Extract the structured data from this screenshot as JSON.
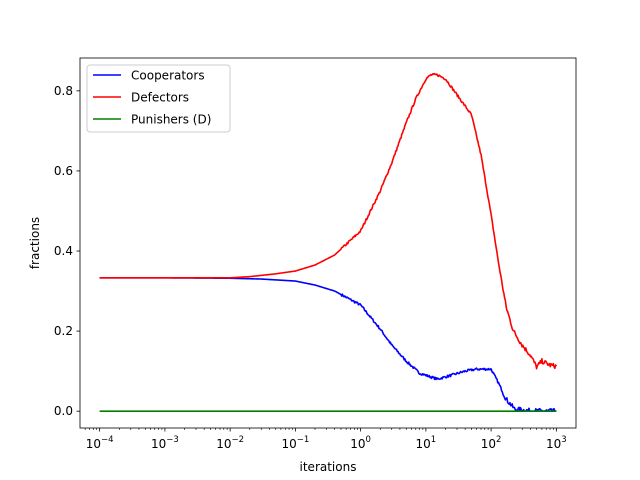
{
  "chart_data": {
    "type": "line",
    "xscale": "log",
    "xlabel": "iterations",
    "ylabel": "fractions",
    "xlim": [
      5e-05,
      2000
    ],
    "ylim": [
      -0.042,
      0.882
    ],
    "xticks": [
      0.0001,
      0.001,
      0.01,
      0.1,
      1,
      10,
      100,
      1000
    ],
    "xtick_labels": [
      {
        "base": "10",
        "exp": "−4"
      },
      {
        "base": "10",
        "exp": "−3"
      },
      {
        "base": "10",
        "exp": "−2"
      },
      {
        "base": "10",
        "exp": "−1"
      },
      {
        "base": "10",
        "exp": "0"
      },
      {
        "base": "10",
        "exp": "1"
      },
      {
        "base": "10",
        "exp": "2"
      },
      {
        "base": "10",
        "exp": "3"
      }
    ],
    "yticks": [
      0.0,
      0.2,
      0.4,
      0.6,
      0.8
    ],
    "ytick_labels": [
      "0.0",
      "0.2",
      "0.4",
      "0.6",
      "0.8"
    ],
    "grid": false,
    "legend_position": "upper-left",
    "series": [
      {
        "name": "Cooperators",
        "color": "#0000ff",
        "points": [
          [
            0.0001,
            0.333
          ],
          [
            0.001,
            0.333
          ],
          [
            0.01,
            0.332
          ],
          [
            0.03,
            0.33
          ],
          [
            0.1,
            0.325
          ],
          [
            0.2,
            0.315
          ],
          [
            0.4,
            0.3
          ],
          [
            1,
            0.265
          ],
          [
            2,
            0.205
          ],
          [
            3,
            0.165
          ],
          [
            5,
            0.125
          ],
          [
            8,
            0.095
          ],
          [
            15,
            0.08
          ],
          [
            25,
            0.09
          ],
          [
            40,
            0.1
          ],
          [
            60,
            0.105
          ],
          [
            100,
            0.105
          ],
          [
            130,
            0.07
          ],
          [
            170,
            0.03
          ],
          [
            230,
            0.005
          ],
          [
            400,
            0.001
          ],
          [
            1000,
            0.0
          ]
        ]
      },
      {
        "name": "Defectors",
        "color": "#ff0000",
        "points": [
          [
            0.0001,
            0.333
          ],
          [
            0.001,
            0.333
          ],
          [
            0.01,
            0.333
          ],
          [
            0.02,
            0.336
          ],
          [
            0.05,
            0.343
          ],
          [
            0.1,
            0.35
          ],
          [
            0.2,
            0.365
          ],
          [
            0.4,
            0.39
          ],
          [
            1,
            0.45
          ],
          [
            2,
            0.55
          ],
          [
            3,
            0.62
          ],
          [
            5,
            0.72
          ],
          [
            7,
            0.78
          ],
          [
            10,
            0.83
          ],
          [
            12,
            0.84
          ],
          [
            15,
            0.84
          ],
          [
            20,
            0.83
          ],
          [
            30,
            0.79
          ],
          [
            50,
            0.74
          ],
          [
            70,
            0.64
          ],
          [
            100,
            0.49
          ],
          [
            130,
            0.37
          ],
          [
            170,
            0.26
          ],
          [
            220,
            0.2
          ],
          [
            300,
            0.165
          ],
          [
            400,
            0.14
          ],
          [
            500,
            0.11
          ],
          [
            600,
            0.125
          ],
          [
            800,
            0.115
          ],
          [
            1000,
            0.112
          ]
        ]
      },
      {
        "name": "Punishers (D)",
        "color": "#008000",
        "points": [
          [
            0.0001,
            0.0
          ],
          [
            1000,
            0.0
          ]
        ]
      }
    ]
  }
}
